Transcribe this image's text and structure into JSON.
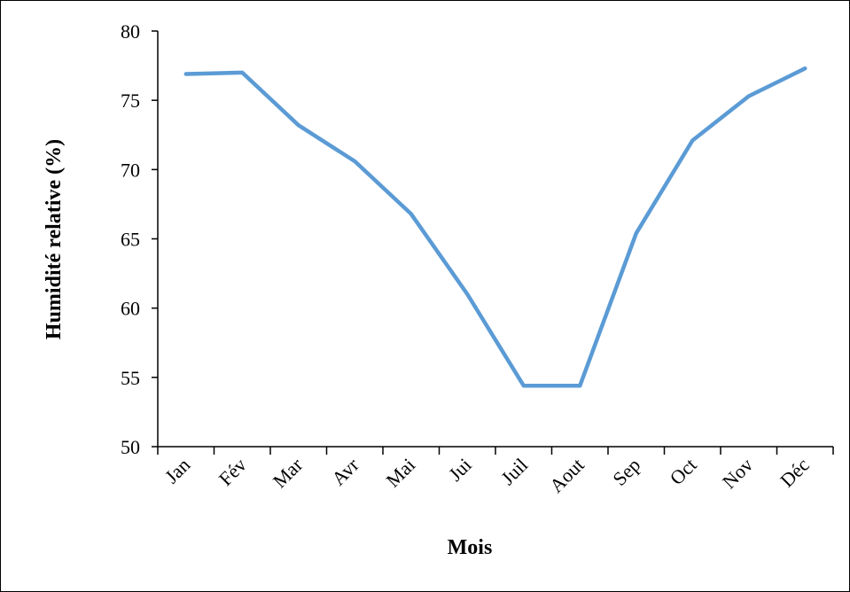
{
  "chart_data": {
    "type": "line",
    "title": "",
    "xlabel": "Mois",
    "ylabel": "Humidité relative (%)",
    "categories": [
      "Jan",
      "Fév",
      "Mar",
      "Avr",
      "Mai",
      "Jui",
      "Juil",
      "Aout",
      "Sep",
      "Oct",
      "Nov",
      "Déc"
    ],
    "series": [
      {
        "color": "#5B9BD5",
        "values": [
          76.9,
          77.0,
          73.2,
          70.6,
          66.8,
          61.0,
          54.4,
          54.4,
          65.4,
          72.1,
          75.3,
          77.3
        ]
      }
    ],
    "yticks": [
      50,
      55,
      60,
      65,
      70,
      75,
      80
    ],
    "ylim": [
      50,
      80
    ],
    "grid": false,
    "legend": "none"
  }
}
